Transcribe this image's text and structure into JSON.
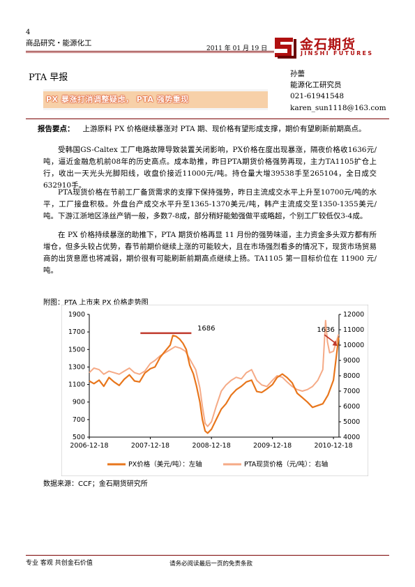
{
  "header": {
    "page_number": "4",
    "section": "商品研究・能源化工",
    "date": "2011 年 01 月 19 日",
    "logo": {
      "text_zh": "金石期货",
      "text_en": "JINSHI FUTURES"
    }
  },
  "report": {
    "title": "PTA 早报",
    "headline": "PX 暴涨打消调整疑虑， PTA 强势重现"
  },
  "analyst": {
    "name": "孙蕾",
    "role": "能源化工研究员",
    "phone": "021-61941548",
    "email": "karen_sun1118@163.com"
  },
  "body": {
    "summary_label": "报告要点：",
    "summary": "上游原料 PX 价格继续暴涨对 PTA 期、现价格有望形成支撑，期价有望刷新前期高点。",
    "para1": "受韩国GS-Caltex 工厂电路故障导致装置关闭影响，PX价格在度出现暴涨，隔夜价格收1636元/吨，逼近金融危机前08年的历史高点。成本助推，昨日PTA期货价格强势再现，主力TA1105扩仓上行，收出一天光头光脚阳线，收盘价接近11000元/吨。持仓量大增39538手至265104，全日成交632910手。",
    "para2": "PTA现货价格在节前工厂备货需求的支撑下保持强势，昨日主流成交水平上升至10700元/吨的水平，工厂接盘积极。外盘台产成交水平升至1365-1370美元/吨，韩产主流成交至1350-1355美元/吨。下游江浙地区涤丝产销一般，多数7-8成，部分稍好能勉强做平或略超，个别工厂较低仅3-4成。",
    "para3": "在 PX 价格持续暴涨的助推下，PTA 期货价格再显 11 月份的强势味道，主力资金多头双方都有所增仓，但多头较占优势，春节前期价继续上涨的可能较大，且在市场强烈看多的情况下，现货市场贸易商的出货意愿也将减弱，期价很有可能刷新前期高点继续上扬。TA1105 第一目标价位在 11900 元/吨。"
  },
  "figure": {
    "caption": "附图：PTA 上市来 PX 价格走势图",
    "source": "数据来源：CCF；金石期货研究所"
  },
  "chart_data": {
    "type": "line",
    "title": "",
    "x_ticks": [
      "2006-12-18",
      "2007-12-18",
      "2008-12-18",
      "2009-12-18",
      "2010-12-18"
    ],
    "left_axis": {
      "label": "",
      "range": [
        500,
        1900
      ],
      "ticks": [
        500,
        700,
        900,
        1100,
        1300,
        1500,
        1700,
        1900
      ]
    },
    "right_axis": {
      "label": "",
      "range": [
        4000,
        12000
      ],
      "ticks": [
        4000,
        5000,
        6000,
        7000,
        8000,
        9000,
        10000,
        11000,
        12000
      ]
    },
    "annotations": [
      {
        "text": "1686",
        "value": 1686,
        "axis": "left"
      },
      {
        "text": "1636",
        "value": 1636,
        "axis": "left"
      }
    ],
    "series": [
      {
        "name": "PX价格（美元/吨）：左轴",
        "axis": "left",
        "color": "#e8761c",
        "x": [
          "2006-12-18",
          "2007-01-15",
          "2007-02-15",
          "2007-03-15",
          "2007-04-15",
          "2007-05-15",
          "2007-06-15",
          "2007-07-15",
          "2007-08-15",
          "2007-09-15",
          "2007-10-15",
          "2007-11-15",
          "2007-12-18",
          "2008-01-15",
          "2008-02-15",
          "2008-03-15",
          "2008-04-15",
          "2008-05-01",
          "2008-05-20",
          "2008-06-10",
          "2008-07-01",
          "2008-07-20",
          "2008-08-10",
          "2008-09-01",
          "2008-09-20",
          "2008-10-10",
          "2008-10-25",
          "2008-11-10",
          "2008-11-25",
          "2008-12-18",
          "2009-01-15",
          "2009-02-15",
          "2009-03-15",
          "2009-04-15",
          "2009-05-15",
          "2009-06-15",
          "2009-07-15",
          "2009-08-15",
          "2009-09-15",
          "2009-10-15",
          "2009-11-15",
          "2009-12-18",
          "2010-01-15",
          "2010-02-15",
          "2010-03-15",
          "2010-04-15",
          "2010-05-15",
          "2010-06-15",
          "2010-07-15",
          "2010-08-15",
          "2010-09-15",
          "2010-10-15",
          "2010-11-15",
          "2010-12-18",
          "2011-01-18"
        ],
        "values": [
          1140,
          1110,
          1150,
          1080,
          1180,
          1130,
          1090,
          1160,
          1210,
          1140,
          1130,
          1230,
          1280,
          1300,
          1410,
          1480,
          1550,
          1660,
          1650,
          1620,
          1570,
          1500,
          1320,
          1220,
          1080,
          900,
          700,
          570,
          545,
          590,
          700,
          820,
          880,
          980,
          1040,
          1080,
          1130,
          1150,
          1020,
          1010,
          1050,
          1100,
          1180,
          1220,
          1180,
          1120,
          1000,
          950,
          900,
          840,
          860,
          880,
          980,
          1150,
          1636
        ]
      },
      {
        "name": "PTA现货价格（元/吨）：右轴",
        "axis": "right",
        "color": "#f5aa86",
        "x": [
          "2006-12-18",
          "2007-01-15",
          "2007-02-15",
          "2007-03-15",
          "2007-04-15",
          "2007-05-15",
          "2007-06-15",
          "2007-07-15",
          "2007-08-15",
          "2007-09-15",
          "2007-10-15",
          "2007-11-15",
          "2007-12-18",
          "2008-01-15",
          "2008-02-15",
          "2008-03-15",
          "2008-04-15",
          "2008-05-15",
          "2008-06-15",
          "2008-07-15",
          "2008-08-15",
          "2008-09-15",
          "2008-10-10",
          "2008-10-25",
          "2008-11-10",
          "2008-11-25",
          "2008-12-18",
          "2009-01-15",
          "2009-02-15",
          "2009-03-15",
          "2009-04-15",
          "2009-05-15",
          "2009-06-15",
          "2009-07-15",
          "2009-08-15",
          "2009-09-15",
          "2009-10-15",
          "2009-11-15",
          "2009-12-18",
          "2010-01-15",
          "2010-02-15",
          "2010-03-15",
          "2010-04-15",
          "2010-05-15",
          "2010-06-15",
          "2010-07-15",
          "2010-08-15",
          "2010-09-15",
          "2010-10-15",
          "2010-11-01",
          "2010-11-12",
          "2010-11-25",
          "2010-12-18",
          "2011-01-18"
        ],
        "values": [
          8200,
          8500,
          8400,
          8100,
          8300,
          8200,
          8100,
          8300,
          8500,
          8200,
          8100,
          8300,
          8800,
          9000,
          9300,
          9500,
          9700,
          9900,
          9800,
          9600,
          9000,
          8400,
          7200,
          6000,
          4900,
          4700,
          5000,
          6000,
          7000,
          7400,
          7700,
          7900,
          7800,
          8200,
          8400,
          7700,
          7400,
          7300,
          7700,
          8000,
          7900,
          7600,
          7300,
          7100,
          7000,
          7100,
          7300,
          7700,
          8400,
          11600,
          10200,
          9500,
          9600,
          10700
        ]
      }
    ]
  },
  "footer": {
    "left": "专业 客观 共创金石价值",
    "middle": "请务必阅读最后一页的免责条款"
  },
  "colors": {
    "rule": "#7a0000",
    "logo": "#b01010",
    "banner_outer": "#f2f2f2",
    "banner_inner": "#f5c79b",
    "banner_text_stroke": "#d73000"
  }
}
